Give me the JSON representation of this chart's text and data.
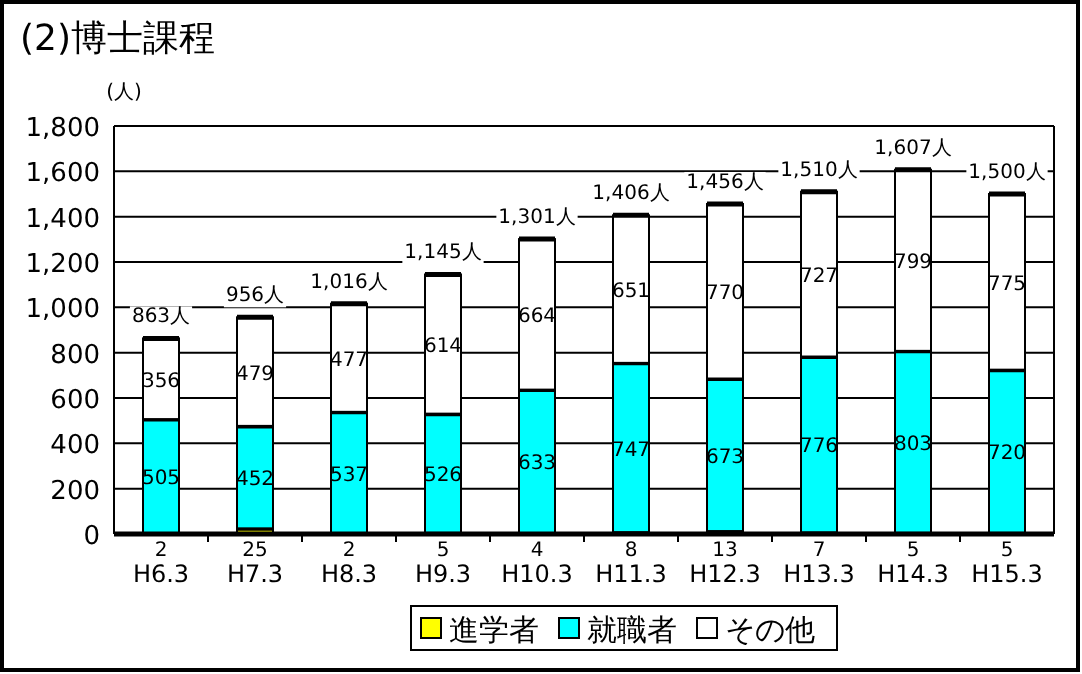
{
  "chart_data": {
    "type": "bar",
    "title": "(2)博士課程",
    "ylabel": "(人)",
    "stacked": true,
    "data_labels": true,
    "grid": "y",
    "legend": "bottom",
    "categories": [
      "H6.3",
      "H7.3",
      "H8.3",
      "H9.3",
      "H10.3",
      "H11.3",
      "H12.3",
      "H13.3",
      "H14.3",
      "H15.3"
    ],
    "series": [
      {
        "name": "進学者",
        "color": "#ffff00",
        "values": [
          2,
          25,
          2,
          5,
          4,
          8,
          13,
          7,
          5,
          5
        ]
      },
      {
        "name": "就職者",
        "color": "#00ffff",
        "values": [
          505,
          452,
          537,
          526,
          633,
          747,
          673,
          776,
          803,
          720
        ]
      },
      {
        "name": "その他",
        "color": "#ffffff",
        "values": [
          356,
          479,
          477,
          614,
          664,
          651,
          770,
          727,
          799,
          775
        ]
      }
    ],
    "totals": [
      "863人",
      "956人",
      "1,016人",
      "1,145人",
      "1,301人",
      "1,406人",
      "1,456人",
      "1,510人",
      "1,607人",
      "1,500人"
    ],
    "ylim": [
      0,
      1800
    ],
    "yticks": [
      0,
      200,
      400,
      600,
      800,
      {
        "value": 1000,
        "label": "1,000"
      },
      {
        "value": 1200,
        "label": "1,200"
      },
      {
        "value": 1400,
        "label": "1,400"
      },
      {
        "value": 1600,
        "label": "1,600"
      },
      {
        "value": 1800,
        "label": "1,800"
      }
    ]
  }
}
